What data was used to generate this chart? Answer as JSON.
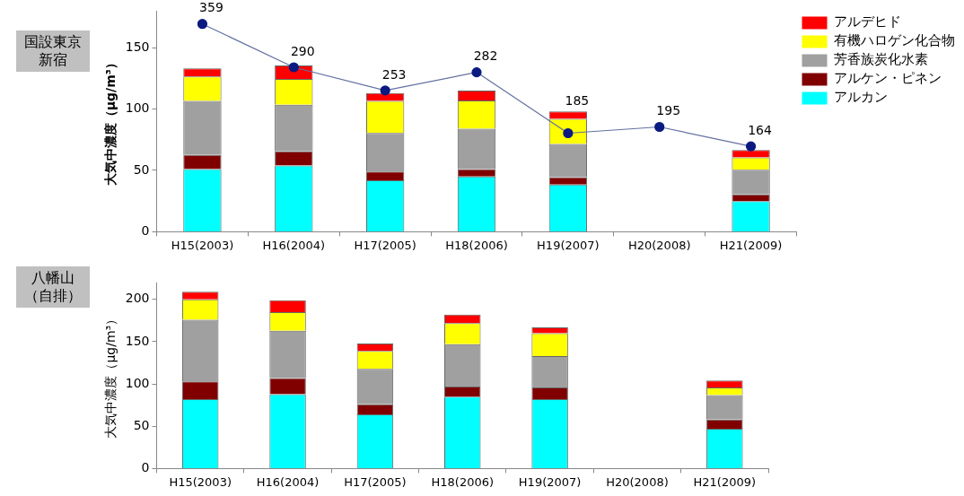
{
  "chart_data": [
    {
      "type": "bar",
      "title": "国設東京新宿",
      "ylabel": "大気中濃度（μg/m³）",
      "categories": [
        "H15(2003)",
        "H16(2004)",
        "H17(2005)",
        "H18(2006)",
        "H19(2007)",
        "H20(2008)",
        "H21(2009)"
      ],
      "stacked": true,
      "legend": "top right",
      "grid": false,
      "ylim": [
        0,
        180
      ],
      "yticks": [
        0,
        50,
        100,
        150
      ],
      "y2lim": [
        28,
        380
      ],
      "series": [
        {
          "name": "アルカン",
          "color": "#00ffff",
          "values": [
            51,
            54,
            42,
            45,
            38.5,
            null,
            25
          ]
        },
        {
          "name": "アルケン・ピネン",
          "color": "#800000",
          "values": [
            11.5,
            11.5,
            7,
            6,
            6,
            null,
            5.5
          ]
        },
        {
          "name": "芳香族炭化水素",
          "color": "#a0a0a0",
          "values": [
            44,
            38,
            31.5,
            33,
            27,
            null,
            20
          ]
        },
        {
          "name": "有機ハロゲン化合物",
          "color": "#ffff00",
          "values": [
            20,
            21,
            26,
            23,
            20.5,
            null,
            10
          ]
        },
        {
          "name": "アルデヒド",
          "color": "#ff0000",
          "values": [
            6.5,
            11,
            6.5,
            8,
            6,
            null,
            6
          ]
        },
        {
          "type": "line",
          "axis": "y2",
          "marker": "circle",
          "color": "#0a1a80",
          "values": [
            359,
            290,
            253,
            282,
            185,
            195,
            164
          ],
          "value_labels": [
            "359",
            "290",
            "253",
            "282",
            "185",
            "195",
            "164"
          ]
        }
      ]
    },
    {
      "type": "bar",
      "title": "八幡山（自排）",
      "ylabel": "大気中濃度（μg/m³）",
      "categories": [
        "H15(2003)",
        "H16(2004)",
        "H17(2005)",
        "H18(2006)",
        "H19(2007)",
        "H20(2008)",
        "H21(2009)"
      ],
      "stacked": true,
      "grid": false,
      "ylim": [
        0,
        220
      ],
      "yticks": [
        0,
        50,
        100,
        150,
        200
      ],
      "series": [
        {
          "color": "#00ffff",
          "values": [
            82,
            88,
            64,
            85,
            82,
            null,
            47
          ]
        },
        {
          "color": "#800000",
          "values": [
            21,
            19,
            12,
            12,
            14,
            null,
            11
          ]
        },
        {
          "color": "#a0a0a0",
          "values": [
            73,
            56,
            42,
            50,
            37,
            null,
            29
          ]
        },
        {
          "color": "#ffff00",
          "values": [
            24,
            22,
            21,
            25,
            27,
            null,
            9
          ]
        },
        {
          "color": "#ff0000",
          "values": [
            9,
            14,
            9,
            10,
            7,
            null,
            8
          ]
        }
      ]
    }
  ]
}
